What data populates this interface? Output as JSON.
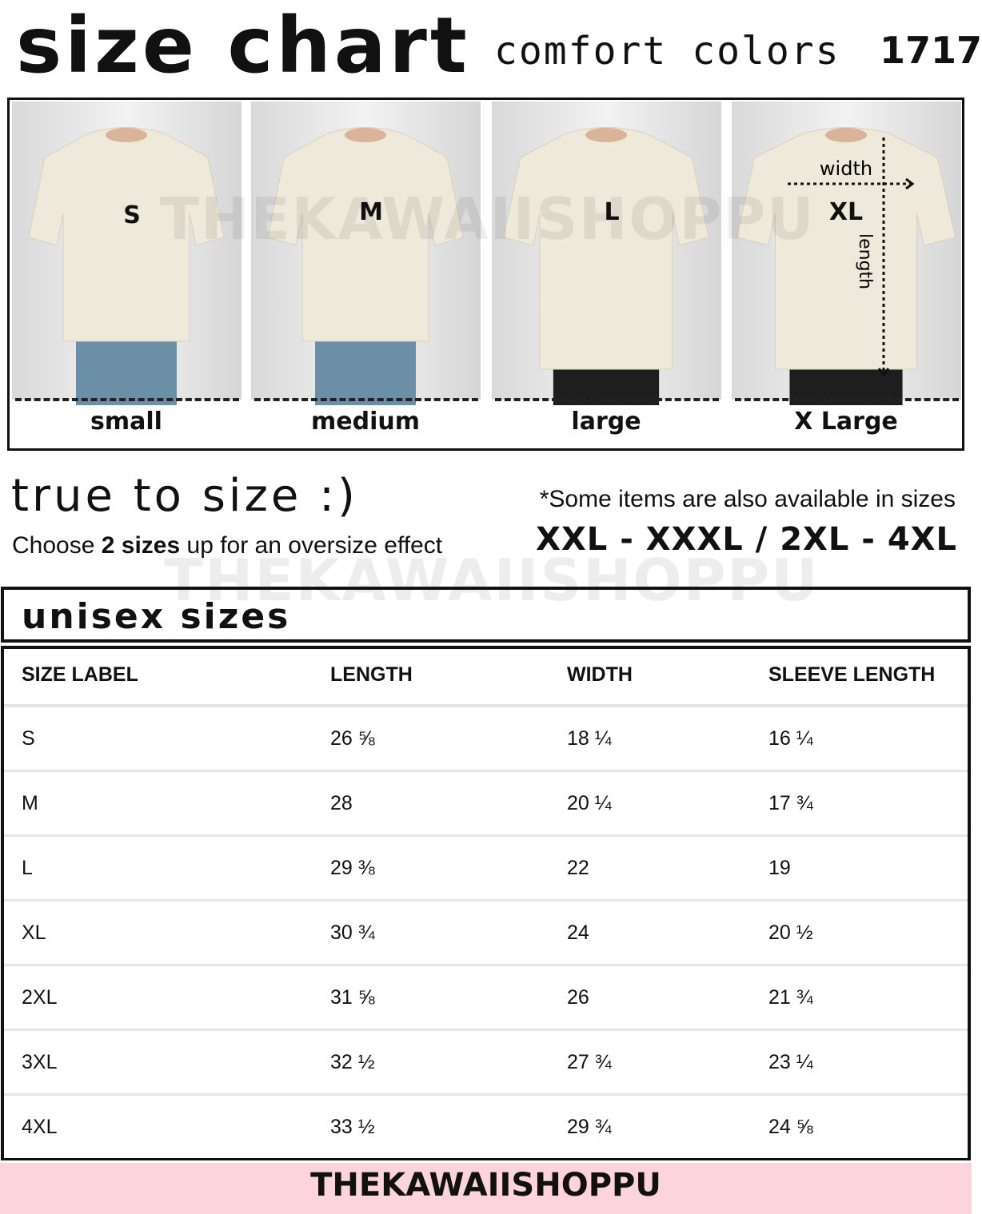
{
  "header": {
    "title": "size chart",
    "brand": "comfort colors",
    "model": "1717"
  },
  "photos": [
    {
      "size": "S",
      "label": "small"
    },
    {
      "size": "M",
      "label": "medium"
    },
    {
      "size": "L",
      "label": "large"
    },
    {
      "size": "XL",
      "label": "X Large",
      "width_label": "width",
      "length_label": "length"
    }
  ],
  "watermark": "THEKAWAIISHOPPU",
  "fit": {
    "heading": "true to size :)",
    "advice_pre": "Choose ",
    "advice_bold": "2 sizes",
    "advice_post": " up for an oversize effect"
  },
  "availability": {
    "note": "*Some items are also available in sizes",
    "sizes": "XXL - XXXL / 2XL - 4XL"
  },
  "section_title": "unisex sizes",
  "table": {
    "columns": [
      "SIZE LABEL",
      "LENGTH",
      "WIDTH",
      "SLEEVE LENGTH"
    ],
    "rows": [
      [
        "S",
        "26 ⅝",
        "18 ¼",
        "16 ¼"
      ],
      [
        "M",
        "28",
        "20 ¼",
        "17 ¾"
      ],
      [
        "L",
        "29 ⅜",
        "22",
        "19"
      ],
      [
        "XL",
        "30 ¾",
        "24",
        "20 ½"
      ],
      [
        "2XL",
        "31 ⅝",
        "26",
        "21 ¾"
      ],
      [
        "3XL",
        "32 ½",
        "27 ¾",
        "23 ¼"
      ],
      [
        "4XL",
        "33 ½",
        "29 ¾",
        "24 ⅝"
      ]
    ]
  },
  "footer": "THEKAWAIISHOPPU",
  "colors": {
    "shirt": "#efe9db",
    "footer_bg": "#fdd4dc",
    "jeans": "#6c8fa8",
    "pants": "#1e1e1e"
  }
}
